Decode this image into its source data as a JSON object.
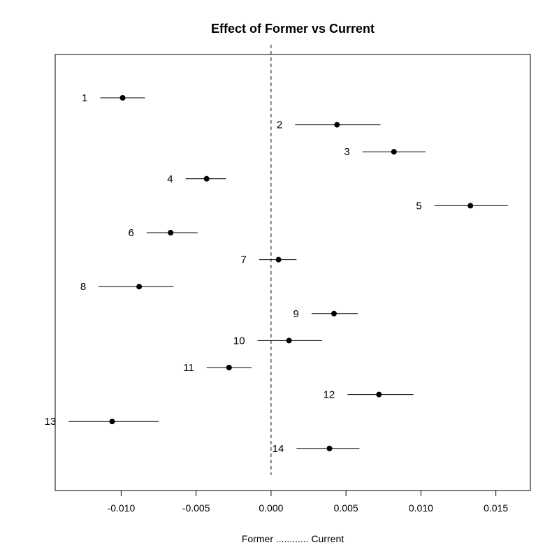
{
  "chart_data": {
    "type": "scatter",
    "subtype": "forest-plot",
    "title": "Effect of Former vs Current",
    "xlabel": "Former ............ Current",
    "ylabel": "",
    "xlim": [
      -0.0144,
      0.0173
    ],
    "x_ticks": [
      -0.01,
      -0.005,
      0.0,
      0.005,
      0.01,
      0.015
    ],
    "x_tick_labels": [
      "-0.010",
      "-0.005",
      "0.000",
      "0.005",
      "0.010",
      "0.015"
    ],
    "reference_line": {
      "x": 0.0,
      "style": "dashed"
    },
    "grid": false,
    "legend": "none",
    "point_color": "#000000",
    "estimates": [
      {
        "label": "1",
        "estimate": -0.0099,
        "lower": -0.0114,
        "upper": -0.0084
      },
      {
        "label": "2",
        "estimate": 0.0044,
        "lower": 0.0016,
        "upper": 0.0073
      },
      {
        "label": "3",
        "estimate": 0.0082,
        "lower": 0.0061,
        "upper": 0.0103
      },
      {
        "label": "4",
        "estimate": -0.0043,
        "lower": -0.0057,
        "upper": -0.003
      },
      {
        "label": "5",
        "estimate": 0.0133,
        "lower": 0.0109,
        "upper": 0.0158
      },
      {
        "label": "6",
        "estimate": -0.0067,
        "lower": -0.0083,
        "upper": -0.0049
      },
      {
        "label": "7",
        "estimate": 0.0005,
        "lower": -0.0008,
        "upper": 0.0017
      },
      {
        "label": "8",
        "estimate": -0.0088,
        "lower": -0.0115,
        "upper": -0.0065
      },
      {
        "label": "9",
        "estimate": 0.0042,
        "lower": 0.0027,
        "upper": 0.0058
      },
      {
        "label": "10",
        "estimate": 0.0012,
        "lower": -0.0009,
        "upper": 0.0034
      },
      {
        "label": "11",
        "estimate": -0.0028,
        "lower": -0.0043,
        "upper": -0.0013
      },
      {
        "label": "12",
        "estimate": 0.0072,
        "lower": 0.0051,
        "upper": 0.0095
      },
      {
        "label": "13",
        "estimate": -0.0106,
        "lower": -0.0135,
        "upper": -0.0075
      },
      {
        "label": "14",
        "estimate": 0.0039,
        "lower": 0.0017,
        "upper": 0.0059
      }
    ]
  }
}
